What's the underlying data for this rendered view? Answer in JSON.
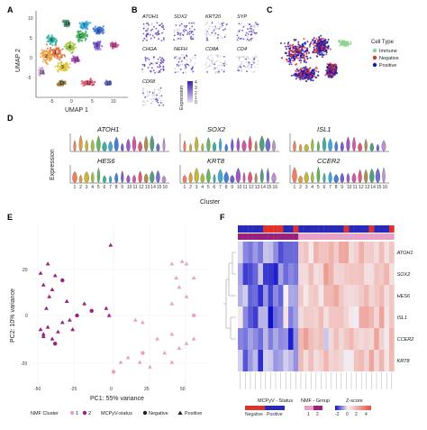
{
  "panels": {
    "A": "A",
    "B": "B",
    "C": "C",
    "D": "D",
    "E": "E",
    "F": "F"
  },
  "panelA": {
    "xlabel": "UMAP 1",
    "ylabel": "UMAP 2",
    "xticks": [
      "-5",
      "0",
      "5",
      "10"
    ],
    "yticks": [
      "-5",
      "0",
      "5",
      "10"
    ],
    "cluster_labels": [
      "1",
      "2",
      "3",
      "4",
      "5",
      "6",
      "7",
      "8",
      "9",
      "10",
      "11",
      "12",
      "13",
      "14",
      "15",
      "16"
    ]
  },
  "panelB": {
    "genes": [
      "ATOH1",
      "SOX2",
      "KRT20",
      "SYP",
      "CHGA",
      "NEFH",
      "CD8A",
      "CD4",
      "CD68"
    ],
    "legend_title": "Expression",
    "legend_ticks": [
      "4",
      "3",
      "2",
      "1",
      "0"
    ],
    "colors": {
      "high": "#3a1fa8",
      "low": "#e8e4ee"
    }
  },
  "panelC": {
    "legend_title": "Cell Type",
    "items": [
      {
        "label": "Immune",
        "color": "#8fd48f"
      },
      {
        "label": "Negative",
        "color": "#e0322b"
      },
      {
        "label": "Positive",
        "color": "#1a1ab3"
      }
    ]
  },
  "panelD": {
    "ylabel": "Expression",
    "xlabel": "Cluster",
    "genes": [
      "ATOH1",
      "SOX2",
      "ISL1",
      "HES6",
      "KRT8",
      "CCER2"
    ],
    "clusters": [
      "1",
      "2",
      "3",
      "4",
      "5",
      "6",
      "7",
      "8",
      "9",
      "10",
      "11",
      "12",
      "13",
      "14",
      "15",
      "16"
    ]
  },
  "panelE": {
    "xlabel": "PC1: 55% variance",
    "ylabel": "PC2: 10% variance",
    "xticks": [
      "-50",
      "-25",
      "0",
      "25",
      "50"
    ],
    "yticks": [
      "20",
      "0",
      "-20"
    ],
    "legend": {
      "nmf_title": "NMF Cluster",
      "nmf_items": [
        "1",
        "2"
      ],
      "status_title": "MCPyV-status",
      "status_items": [
        "Negative",
        "Positive"
      ]
    },
    "colors": {
      "nmf1": "#e8a0c8",
      "nmf2": "#9b1f7d"
    }
  },
  "panelF": {
    "genes": [
      "ATOH1",
      "SOX2",
      "HES6",
      "ISL1",
      "CCER2",
      "KRT8"
    ],
    "legend": {
      "status_title": "MCPyV - Status",
      "status_items": [
        "Negative",
        "Positive"
      ],
      "nmf_title": "NMF - Group",
      "nmf_items": [
        "1",
        "2"
      ],
      "z_title": "Z-score",
      "z_ticks": [
        "-2",
        "0",
        "2",
        "4"
      ]
    },
    "colors": {
      "neg": "#e0322b",
      "pos": "#2a2ab8",
      "low": "#1010c8",
      "mid": "#f4f0f4",
      "high": "#e8503a"
    }
  }
}
